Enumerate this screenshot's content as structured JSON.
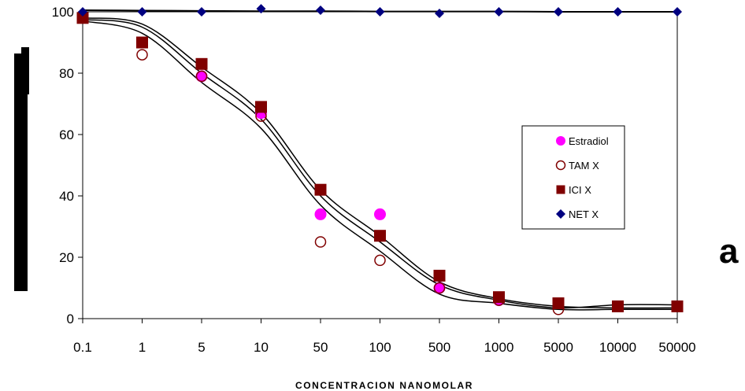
{
  "panel_label": "a",
  "colors": {
    "estradiol": "#ff00ff",
    "tam": "#800000",
    "ici": "#800000",
    "net": "#000080",
    "curve": "#000000"
  },
  "chart_data": {
    "type": "scatter",
    "title": "",
    "xlabel": "CONCENTRACION NANOMOLAR",
    "ylabel": "",
    "ylim": [
      0,
      100
    ],
    "yticks": [
      0,
      20,
      40,
      60,
      80,
      100
    ],
    "categories": [
      "0.1",
      "1",
      "5",
      "10",
      "50",
      "100",
      "500",
      "1000",
      "5000",
      "10000",
      "50000"
    ],
    "legend_position": "right",
    "series": [
      {
        "name": "Estradiol",
        "marker": "filled-circle",
        "values": [
          null,
          null,
          79,
          67,
          34,
          34,
          10,
          6,
          null,
          null,
          null
        ]
      },
      {
        "name": "TAM X",
        "marker": "open-circle",
        "values": [
          98,
          86,
          79,
          66,
          25,
          19,
          10,
          6,
          3,
          4,
          4
        ]
      },
      {
        "name": "ICI X",
        "marker": "filled-square",
        "values": [
          98,
          90,
          83,
          69,
          42,
          27,
          14,
          7,
          5,
          4,
          4
        ]
      },
      {
        "name": "NET X",
        "marker": "diamond",
        "values": [
          100,
          100,
          100,
          101,
          100.5,
          100,
          99.5,
          100,
          100,
          100,
          100
        ]
      }
    ],
    "fit_curves": [
      [
        97,
        93,
        77,
        62,
        37,
        22,
        8,
        5,
        3,
        3,
        3
      ],
      [
        97.5,
        95,
        80,
        65,
        40,
        25,
        11,
        6,
        3.5,
        4.5,
        4.5
      ],
      [
        98,
        96,
        82,
        67,
        42,
        27,
        12,
        6.5,
        4,
        3.5,
        3.5
      ],
      [
        100.5,
        100.4,
        100.3,
        100.2,
        100.2,
        100.1,
        100.1,
        100.1,
        100,
        100,
        100
      ]
    ]
  }
}
